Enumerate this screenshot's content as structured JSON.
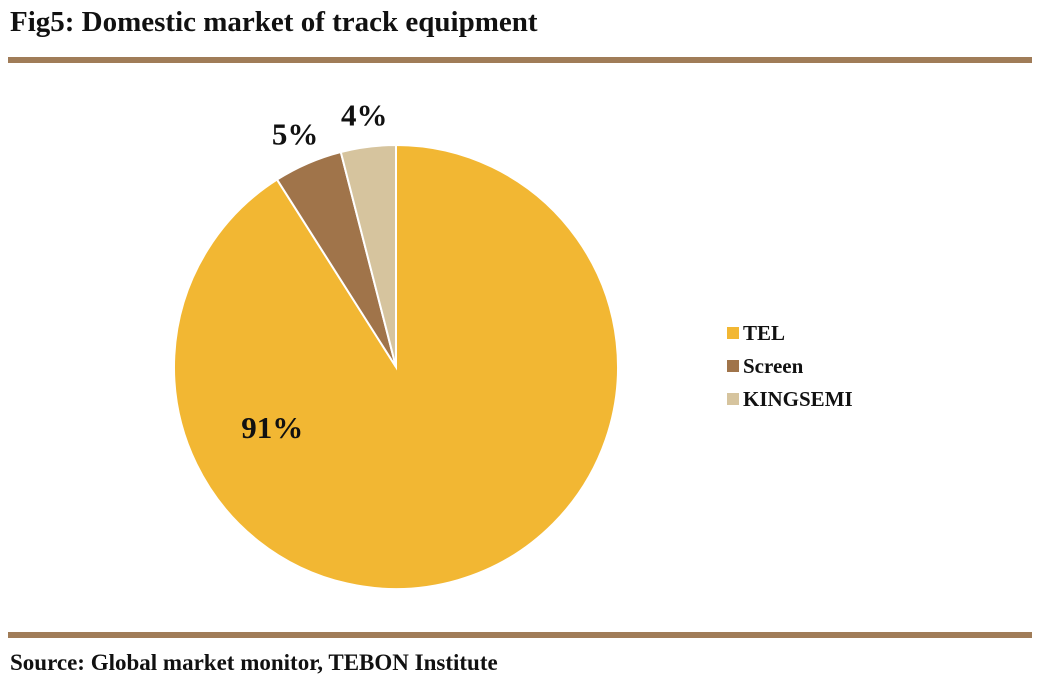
{
  "figure": {
    "title": "Fig5: Domestic market of track equipment",
    "source": "Source: Global market monitor, TEBON Institute",
    "rule_color": "#A07C58"
  },
  "chart_data": {
    "type": "pie",
    "title": "Fig5: Domestic market of track equipment",
    "categories": [
      "TEL",
      "Screen",
      "KINGSEMI"
    ],
    "values": [
      91,
      5,
      4
    ],
    "labels": [
      "91%",
      "5%",
      "4%"
    ],
    "colors": [
      "#F2B733",
      "#A0744A",
      "#D6C49E"
    ],
    "legend": {
      "position": "right",
      "entries": [
        "TEL",
        "Screen",
        "KINGSEMI"
      ]
    }
  }
}
